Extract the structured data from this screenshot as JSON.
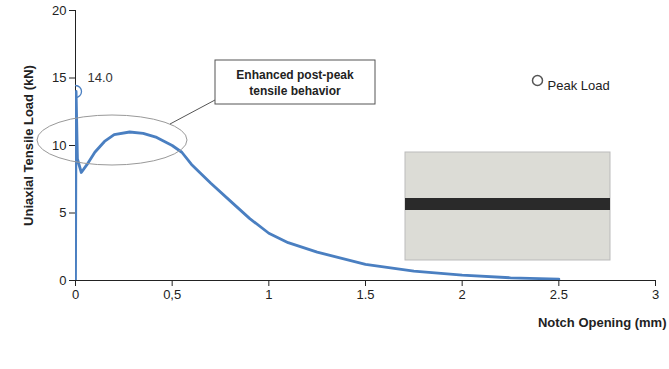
{
  "chart_data": {
    "type": "line",
    "x_label": "Notch Opening (mm)",
    "y_label": "Uniaxial Tensile Load (kN)",
    "xlim": [
      0,
      3
    ],
    "ylim": [
      0,
      20
    ],
    "xticks": [
      0,
      {
        "value": 0.5,
        "label": "0,5"
      },
      1,
      1.5,
      2,
      2.5,
      3
    ],
    "yticks": [
      0,
      5,
      10,
      15,
      20
    ],
    "grid": false,
    "legend": "top-right",
    "annotations": [
      {
        "text": "Enhanced post-peak tensile behavior"
      }
    ],
    "series": [
      {
        "type": "line",
        "color": "#4a7fc1",
        "x": [
          0,
          0.003,
          0.01,
          0.03,
          0.06,
          0.1,
          0.15,
          0.2,
          0.28,
          0.35,
          0.42,
          0.5,
          0.55,
          0.6,
          0.7,
          0.8,
          0.9,
          1.0,
          1.1,
          1.25,
          1.5,
          1.75,
          2.0,
          2.25,
          2.5
        ],
        "values": [
          0,
          14,
          9,
          8,
          8.6,
          9.5,
          10.3,
          10.8,
          11,
          10.9,
          10.6,
          10,
          9.5,
          8.6,
          7.2,
          5.9,
          4.6,
          3.5,
          2.8,
          2.1,
          1.2,
          0.7,
          0.4,
          0.2,
          0.1
        ]
      },
      {
        "name": "Peak Load",
        "type": "scatter",
        "marker": "circle",
        "color": "#4a7fc1",
        "x": [
          0
        ],
        "values": [
          14
        ],
        "data_labels": true,
        "value_labels": [
          "14.0"
        ]
      }
    ]
  }
}
